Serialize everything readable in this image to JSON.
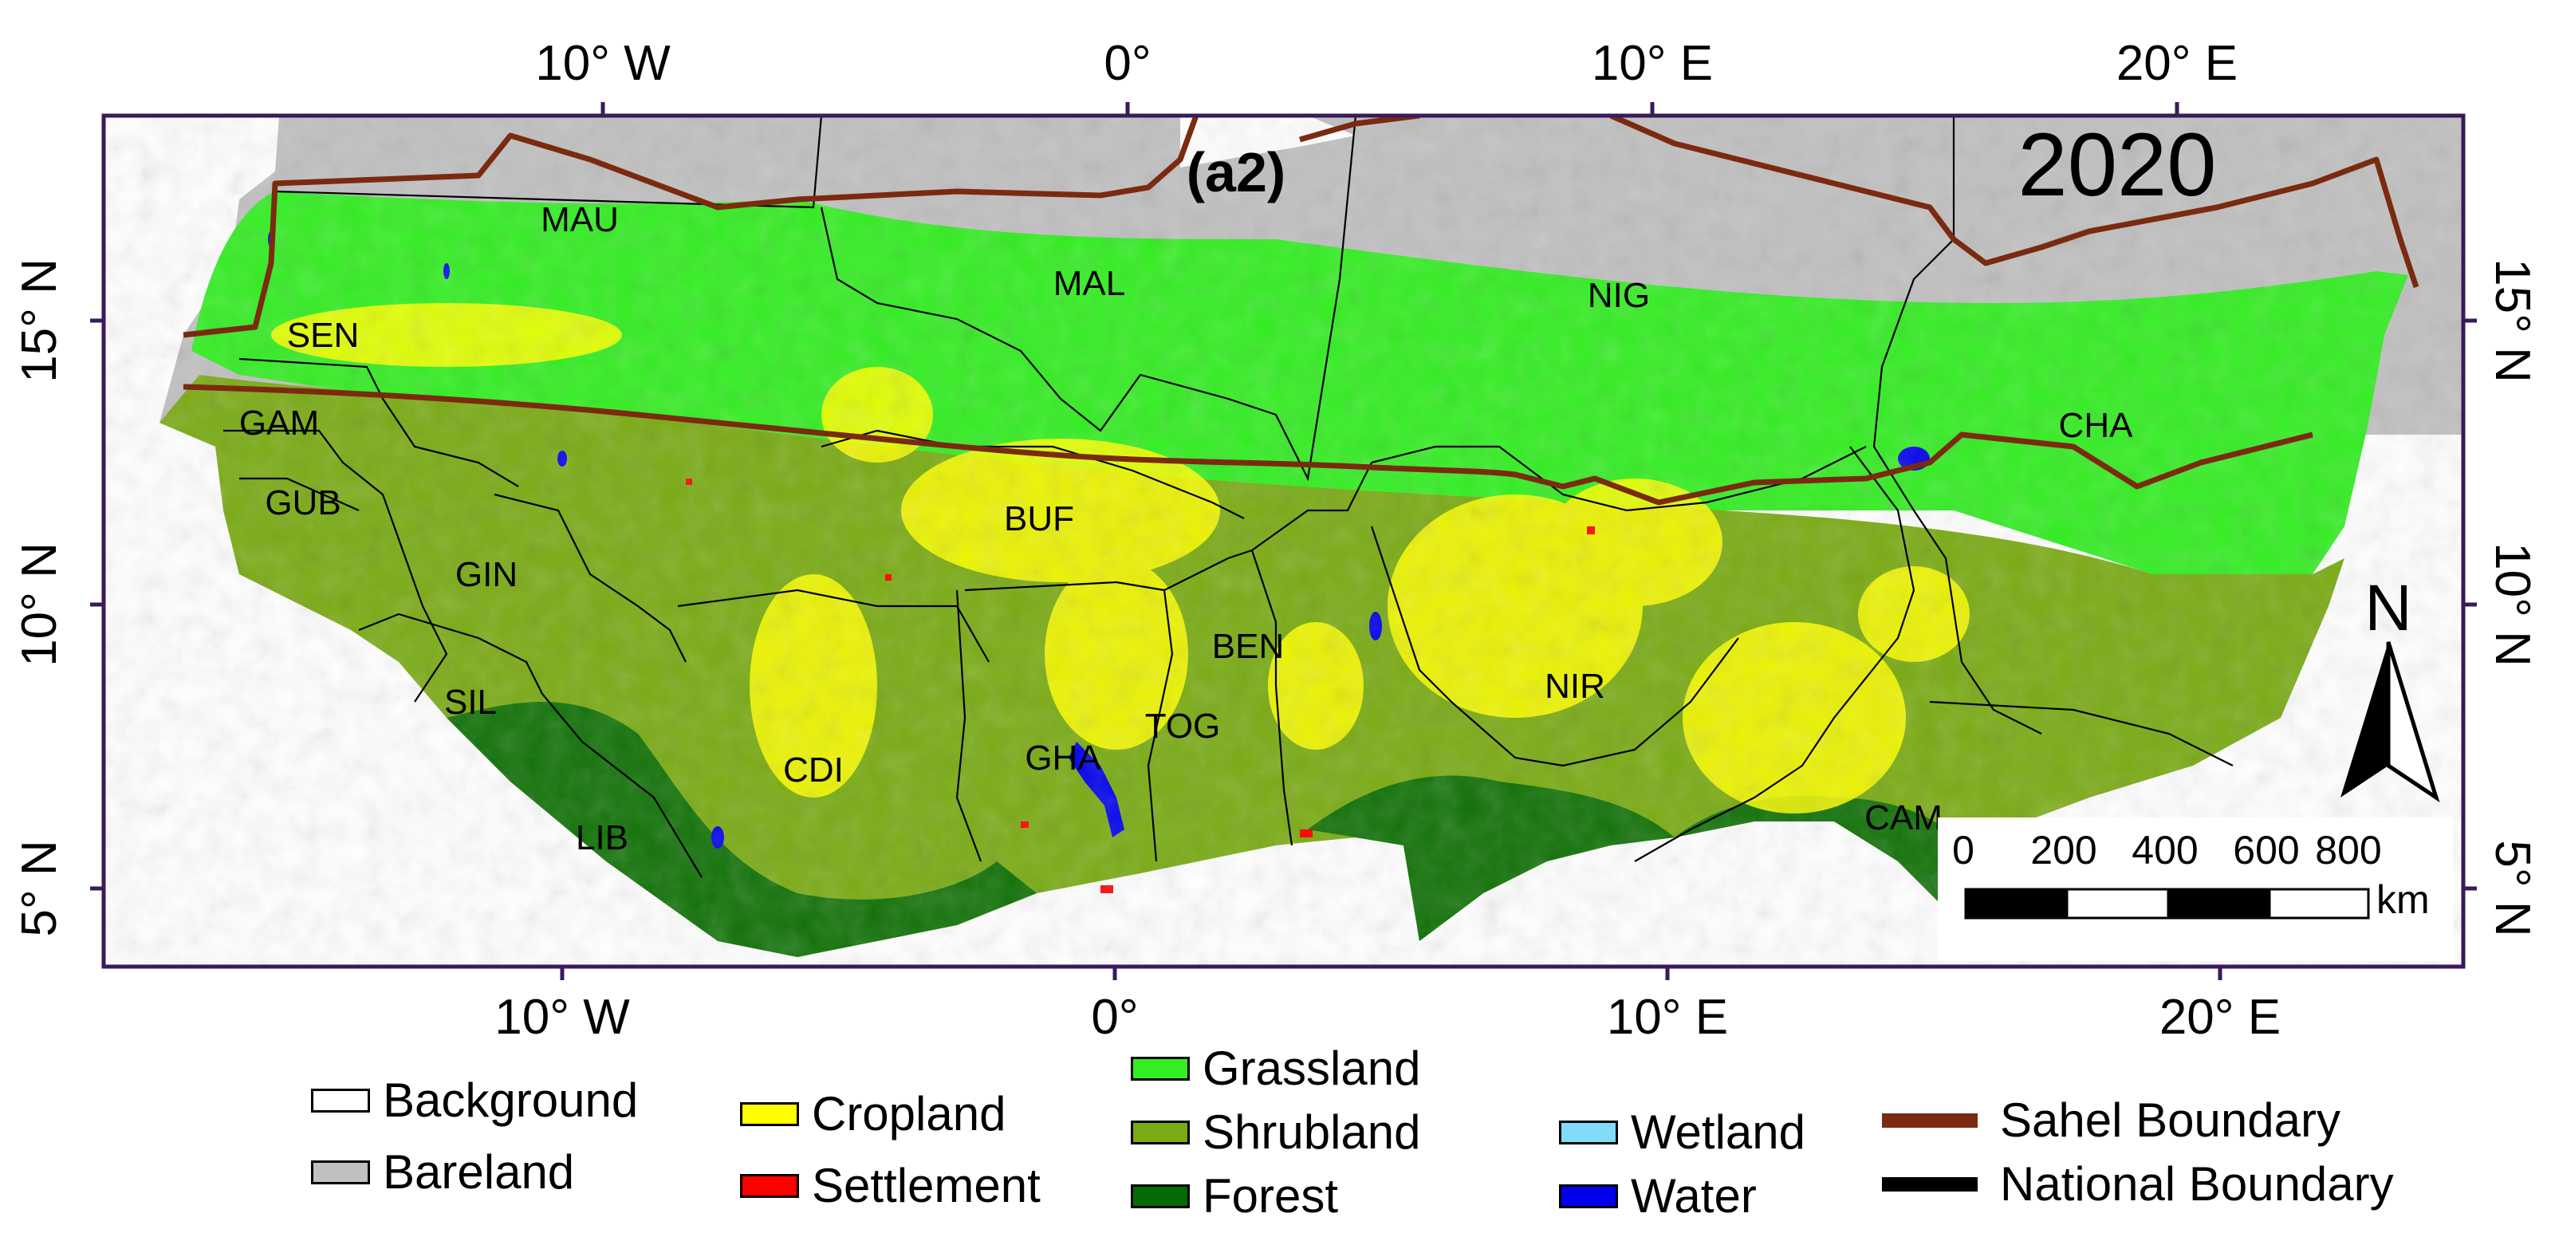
{
  "panel_label": "(a2)",
  "year": "2020",
  "axes": {
    "top_ticks": [
      "10° W",
      "0°",
      "10° E",
      "20° E"
    ],
    "bottom_ticks": [
      "10° W",
      "0°",
      "10° E",
      "20° E"
    ],
    "left_ticks": [
      "15° N",
      "10° N",
      "5° N"
    ],
    "right_ticks": [
      "15° N",
      "10° N",
      "5° N"
    ]
  },
  "countries": [
    {
      "code": "MAU"
    },
    {
      "code": "MAL"
    },
    {
      "code": "NIG"
    },
    {
      "code": "SEN"
    },
    {
      "code": "GAM"
    },
    {
      "code": "GUB"
    },
    {
      "code": "GIN"
    },
    {
      "code": "SIL"
    },
    {
      "code": "LIB"
    },
    {
      "code": "CDI"
    },
    {
      "code": "BUF"
    },
    {
      "code": "GHA"
    },
    {
      "code": "TOG"
    },
    {
      "code": "BEN"
    },
    {
      "code": "NIR"
    },
    {
      "code": "CHA"
    },
    {
      "code": "CAM"
    }
  ],
  "north_arrow": {
    "label": "N"
  },
  "scale_bar": {
    "ticks": [
      "0",
      "200",
      "400",
      "600",
      "800"
    ],
    "unit": "km"
  },
  "legend": [
    {
      "label": "Background",
      "color": "#ffffff"
    },
    {
      "label": "Bareland",
      "color": "#c0c0c0"
    },
    {
      "label": "Cropland",
      "color": "#ffff00"
    },
    {
      "label": "Settlement",
      "color": "#ff0000"
    },
    {
      "label": "Grassland",
      "color": "#33ee22"
    },
    {
      "label": "Shrubland",
      "color": "#7aab14"
    },
    {
      "label": "Forest",
      "color": "#056b05"
    },
    {
      "label": "Wetland",
      "color": "#80dcf8"
    },
    {
      "label": "Water",
      "color": "#0000ee"
    },
    {
      "label": "Sahel Boundary",
      "color": "#7b2a10"
    },
    {
      "label": "National  Boundary",
      "color": "#000000"
    }
  ],
  "colors": {
    "frame": "#3a1a5a",
    "sahel_line": "#7b2a10",
    "bareland": "#c0c0c0",
    "grassland": "#33ee22",
    "shrubland": "#7aab14",
    "cropland": "#ffff00",
    "forest": "#056b05",
    "water": "#0000ee",
    "settlement": "#ff0000"
  }
}
